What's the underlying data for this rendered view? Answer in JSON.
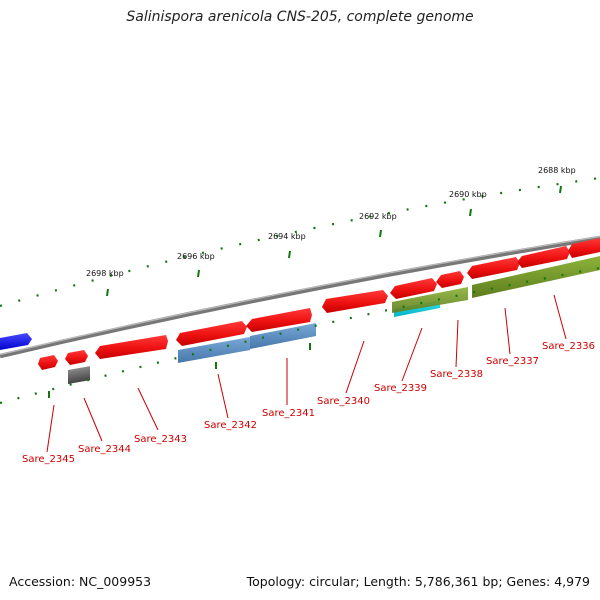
{
  "title": "Salinispora arenicola CNS-205, complete genome",
  "footer": {
    "accession": "Accession: NC_009953",
    "stats": "Topology: circular; Length: 5,786,361 bp; Genes: 4,979"
  },
  "scale_labels": [
    "2698 kbp",
    "2696 kbp",
    "2694 kbp",
    "2692 kbp",
    "2690 kbp",
    "2688 kbp"
  ],
  "gene_labels": [
    "Sare_2345",
    "Sare_2344",
    "Sare_2343",
    "Sare_2342",
    "Sare_2341",
    "Sare_2340",
    "Sare_2339",
    "Sare_2338",
    "Sare_2337",
    "Sare_2336"
  ],
  "colors": {
    "cds": "#ee1111",
    "cds_dark": "#a00000",
    "other_gene_blue": "#0000dd",
    "steelblue": "#5c8fc4",
    "olive": "#77992a",
    "cyan": "#00ccdd",
    "gray": "#666666",
    "backbone": "#888888",
    "ticks": "#117711",
    "label": "#cc0000"
  }
}
